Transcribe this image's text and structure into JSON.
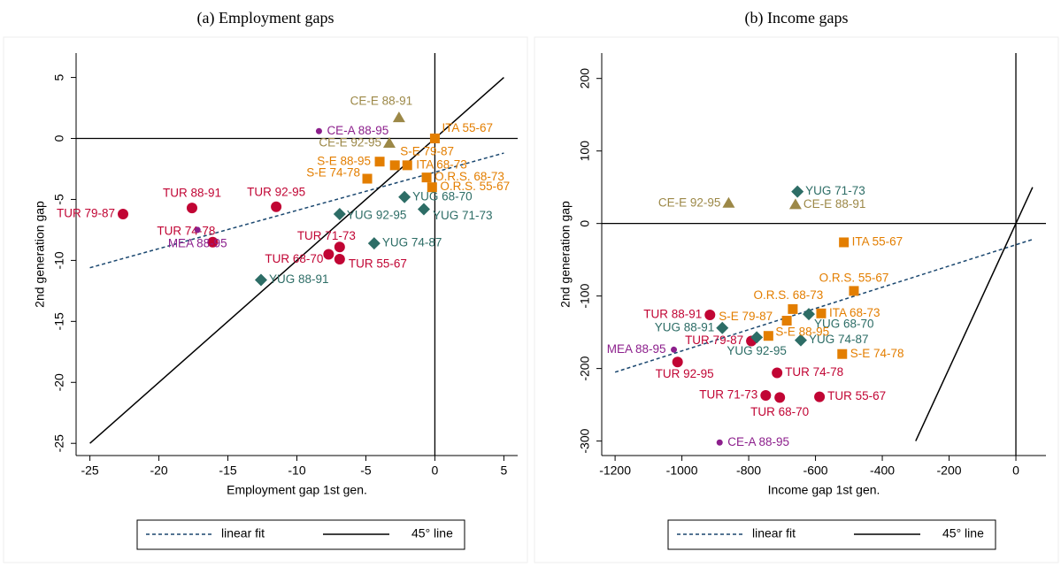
{
  "chart_data": [
    {
      "type": "scatter",
      "title": "(a) Employment gaps",
      "xlabel": "Employment gap 1st gen.",
      "ylabel": "2nd generation gap",
      "xlim": [
        -26,
        6
      ],
      "ylim": [
        -26,
        7
      ],
      "xticks": [
        -25,
        -20,
        -15,
        -10,
        -5,
        0,
        5
      ],
      "yticks": [
        -25,
        -20,
        -15,
        -10,
        -5,
        0,
        5
      ],
      "xline": 0,
      "yline": 0,
      "series": [
        {
          "color": "#c10534",
          "marker": "circle",
          "x": [
            -22.6,
            -17.6,
            -11.5,
            -16.1,
            -6.9,
            -7.7,
            -6.9
          ],
          "values": [
            -6.2,
            -5.7,
            -5.6,
            -8.5,
            -8.9,
            -9.5,
            -9.9
          ],
          "labels": [
            "TUR 79-87",
            "TUR 88-91",
            "TUR 92-95",
            "TUR 74-78",
            "TUR 71-73",
            "TUR 68-70",
            "TUR 55-67"
          ]
        },
        {
          "color": "#2d6d66",
          "marker": "diamond",
          "x": [
            -12.6,
            -6.9,
            -4.4,
            -2.2,
            -0.8
          ],
          "values": [
            -11.6,
            -6.2,
            -8.6,
            -4.8,
            -5.8
          ],
          "labels": [
            "YUG 88-91",
            "YUG 92-95",
            "YUG 74-87",
            "YUG 68-70",
            "YUG 71-73"
          ]
        },
        {
          "color": "#9c8847",
          "marker": "triangle",
          "x": [
            -2.6,
            -3.3
          ],
          "values": [
            1.7,
            -0.4
          ],
          "labels": [
            "CE-E 88-91",
            "CE-E 92-95"
          ]
        },
        {
          "color": "#e37e00",
          "marker": "square",
          "x": [
            0,
            -2.9,
            -4.0,
            -2.0,
            -4.9,
            -0.6,
            -0.2
          ],
          "values": [
            0,
            -2.2,
            -1.9,
            -2.2,
            -3.3,
            -3.2,
            -4.0
          ],
          "labels": [
            "ITA 55-67",
            "S-E 79-87",
            "S-E 88-95",
            "ITA 68-73",
            "S-E 74-78",
            "O.R.S. 68-73",
            "O.R.S. 55-67"
          ]
        },
        {
          "color": "#8c1f8c",
          "marker": "dot",
          "x": [
            -8.4,
            -17.2
          ],
          "values": [
            0.6,
            -7.5
          ],
          "labels": [
            "CE-A 88-95",
            "MEA 88-95"
          ]
        }
      ],
      "lines": [
        {
          "name": "linear fit",
          "color": "#1a476f",
          "dash": true,
          "x": [
            -25,
            5
          ],
          "values": [
            -10.6,
            -1.2
          ]
        },
        {
          "name": "45° line",
          "color": "#000000",
          "dash": false,
          "x": [
            -25,
            5
          ],
          "values": [
            -25,
            5
          ]
        }
      ]
    },
    {
      "type": "scatter",
      "title": "(b) Income gaps",
      "xlabel": "Income gap 1st gen.",
      "ylabel": "2nd generation gap",
      "xlim": [
        -1240,
        90
      ],
      "ylim": [
        -320,
        235
      ],
      "xticks": [
        -1200,
        -1000,
        -800,
        -600,
        -400,
        -200,
        0
      ],
      "yticks": [
        -300,
        -200,
        -100,
        0,
        100,
        200
      ],
      "xline": 0,
      "yline": 0,
      "series": [
        {
          "color": "#c10534",
          "marker": "circle",
          "x": [
            -916,
            -792,
            -1013,
            -715,
            -749,
            -707,
            -588
          ],
          "values": [
            -126,
            -162,
            -191,
            -206,
            -237,
            -240,
            -239
          ],
          "labels": [
            "TUR 88-91",
            "TUR 79-87",
            "TUR 92-95",
            "TUR 74-78",
            "TUR 71-73",
            "TUR 68-70",
            "TUR 55-67"
          ]
        },
        {
          "color": "#2d6d66",
          "marker": "diamond",
          "x": [
            -654,
            -620,
            -879,
            -644,
            -776
          ],
          "values": [
            44,
            -125,
            -144,
            -161,
            -157
          ],
          "labels": [
            "YUG 71-73",
            "YUG 68-70",
            "YUG 88-91",
            "YUG 74-87",
            "YUG 92-95"
          ]
        },
        {
          "color": "#9c8847",
          "marker": "triangle",
          "x": [
            -860,
            -660
          ],
          "values": [
            28,
            26
          ],
          "labels": [
            "CE-E 92-95",
            "CE-E 88-91"
          ]
        },
        {
          "color": "#e37e00",
          "marker": "square",
          "x": [
            -515,
            -485,
            -668,
            -583,
            -686,
            -741,
            -520
          ],
          "values": [
            -26,
            -93,
            -118,
            -124,
            -134,
            -155,
            -180
          ],
          "labels": [
            "ITA 55-67",
            "O.R.S. 55-67",
            "O.R.S. 68-73",
            "ITA 68-73",
            "S-E 79-87",
            "S-E 88-95",
            "S-E 74-78"
          ]
        },
        {
          "color": "#8c1f8c",
          "marker": "dot",
          "x": [
            -1024,
            -887
          ],
          "values": [
            -174,
            -302
          ],
          "labels": [
            "MEA 88-95",
            "CE-A 88-95"
          ]
        }
      ],
      "lines": [
        {
          "name": "linear fit",
          "color": "#1a476f",
          "dash": true,
          "x": [
            -1200,
            50
          ],
          "values": [
            -205,
            -22
          ]
        },
        {
          "name": "45° line",
          "color": "#000000",
          "dash": false,
          "x": [
            -300,
            50
          ],
          "values": [
            -300,
            50
          ]
        }
      ]
    }
  ]
}
